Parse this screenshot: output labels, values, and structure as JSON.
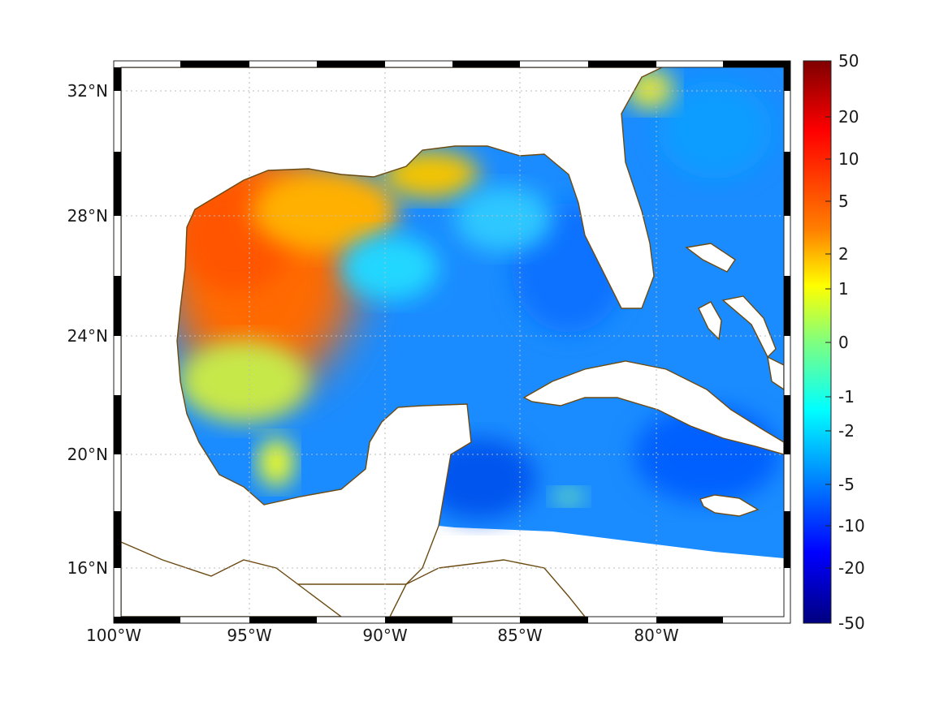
{
  "map": {
    "x_axis": {
      "ticks": [
        "100°W",
        "95°W",
        "90°W",
        "85°W",
        "80°W"
      ],
      "values": [
        -100,
        -95,
        -90,
        -85,
        -80
      ]
    },
    "y_axis": {
      "ticks": [
        "32°N",
        "28°N",
        "24°N",
        "20°N",
        "16°N"
      ],
      "values": [
        32,
        28,
        24,
        20,
        16
      ]
    },
    "extent": {
      "lon": [
        -100,
        -75
      ],
      "lat": [
        14.3,
        33
      ]
    },
    "grid": "dotted",
    "frame": "checkered black and white border",
    "coastline_color": "#6b4a12",
    "land_color": "#ffffff"
  },
  "colorbar": {
    "ticks": [
      "50",
      "20",
      "10",
      "5",
      "2",
      "1",
      "0",
      "-1",
      "-2",
      "-5",
      "-10",
      "-20",
      "-50"
    ],
    "values": [
      50,
      20,
      10,
      5,
      2,
      1,
      0,
      -1,
      -2,
      -5,
      -10,
      -20,
      -50
    ],
    "colormap": "jet",
    "colors": [
      "#7f0000",
      "#ff0000",
      "#ff7f00",
      "#ffff00",
      "#7fff7f",
      "#00ffff",
      "#007fff",
      "#0000ff",
      "#00007f"
    ]
  }
}
